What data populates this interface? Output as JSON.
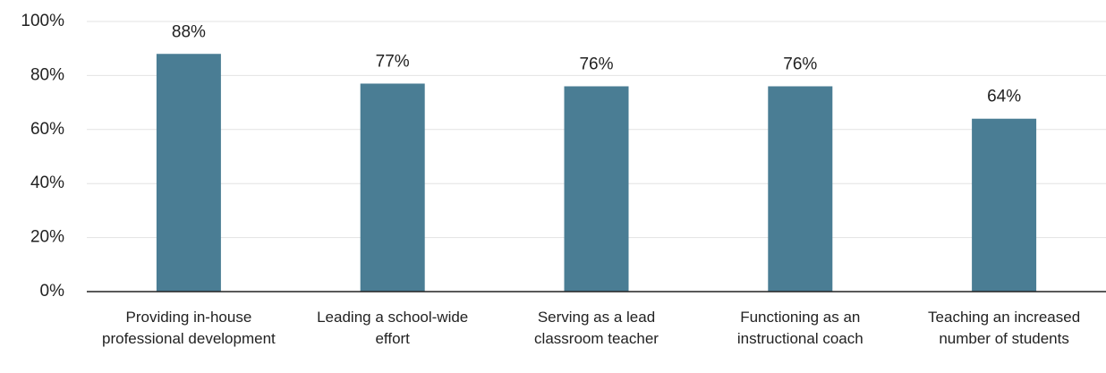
{
  "chart_data": {
    "type": "bar",
    "categories": [
      "Providing in-house professional development",
      "Leading a school-wide effort",
      "Serving as a lead classroom teacher",
      "Functioning as an instructional coach",
      "Teaching an increased number of students"
    ],
    "values": [
      88,
      77,
      76,
      76,
      64
    ],
    "value_labels": [
      "88%",
      "77%",
      "76%",
      "76%",
      "64%"
    ],
    "color": "#4a7d94",
    "ylim": [
      0,
      100
    ],
    "yticks": [
      {
        "value": 0,
        "label": "0%"
      },
      {
        "value": 20,
        "label": "20%"
      },
      {
        "value": 40,
        "label": "40%"
      },
      {
        "value": 60,
        "label": "60%"
      },
      {
        "value": 80,
        "label": "80%"
      },
      {
        "value": 100,
        "label": "100%"
      }
    ],
    "grid": true
  }
}
